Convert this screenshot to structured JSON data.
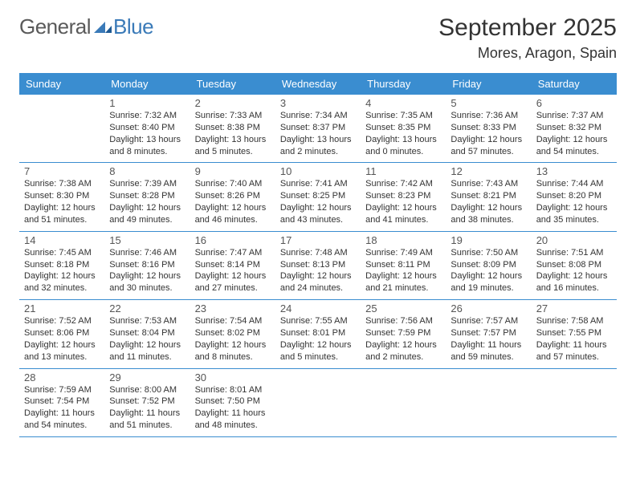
{
  "logo": {
    "general": "General",
    "blue": "Blue"
  },
  "title": "September 2025",
  "location": "Mores, Aragon, Spain",
  "colors": {
    "headerBar": "#3a8dd0",
    "rule": "#3a8dd0",
    "logoBlue": "#3a7ab8",
    "text": "#333333",
    "logoGray": "#5a5a5a"
  },
  "weekdays": [
    "Sunday",
    "Monday",
    "Tuesday",
    "Wednesday",
    "Thursday",
    "Friday",
    "Saturday"
  ],
  "weeks": [
    [
      null,
      {
        "n": "1",
        "sr": "Sunrise: 7:32 AM",
        "ss": "Sunset: 8:40 PM",
        "dl": "Daylight: 13 hours and 8 minutes."
      },
      {
        "n": "2",
        "sr": "Sunrise: 7:33 AM",
        "ss": "Sunset: 8:38 PM",
        "dl": "Daylight: 13 hours and 5 minutes."
      },
      {
        "n": "3",
        "sr": "Sunrise: 7:34 AM",
        "ss": "Sunset: 8:37 PM",
        "dl": "Daylight: 13 hours and 2 minutes."
      },
      {
        "n": "4",
        "sr": "Sunrise: 7:35 AM",
        "ss": "Sunset: 8:35 PM",
        "dl": "Daylight: 13 hours and 0 minutes."
      },
      {
        "n": "5",
        "sr": "Sunrise: 7:36 AM",
        "ss": "Sunset: 8:33 PM",
        "dl": "Daylight: 12 hours and 57 minutes."
      },
      {
        "n": "6",
        "sr": "Sunrise: 7:37 AM",
        "ss": "Sunset: 8:32 PM",
        "dl": "Daylight: 12 hours and 54 minutes."
      }
    ],
    [
      {
        "n": "7",
        "sr": "Sunrise: 7:38 AM",
        "ss": "Sunset: 8:30 PM",
        "dl": "Daylight: 12 hours and 51 minutes."
      },
      {
        "n": "8",
        "sr": "Sunrise: 7:39 AM",
        "ss": "Sunset: 8:28 PM",
        "dl": "Daylight: 12 hours and 49 minutes."
      },
      {
        "n": "9",
        "sr": "Sunrise: 7:40 AM",
        "ss": "Sunset: 8:26 PM",
        "dl": "Daylight: 12 hours and 46 minutes."
      },
      {
        "n": "10",
        "sr": "Sunrise: 7:41 AM",
        "ss": "Sunset: 8:25 PM",
        "dl": "Daylight: 12 hours and 43 minutes."
      },
      {
        "n": "11",
        "sr": "Sunrise: 7:42 AM",
        "ss": "Sunset: 8:23 PM",
        "dl": "Daylight: 12 hours and 41 minutes."
      },
      {
        "n": "12",
        "sr": "Sunrise: 7:43 AM",
        "ss": "Sunset: 8:21 PM",
        "dl": "Daylight: 12 hours and 38 minutes."
      },
      {
        "n": "13",
        "sr": "Sunrise: 7:44 AM",
        "ss": "Sunset: 8:20 PM",
        "dl": "Daylight: 12 hours and 35 minutes."
      }
    ],
    [
      {
        "n": "14",
        "sr": "Sunrise: 7:45 AM",
        "ss": "Sunset: 8:18 PM",
        "dl": "Daylight: 12 hours and 32 minutes."
      },
      {
        "n": "15",
        "sr": "Sunrise: 7:46 AM",
        "ss": "Sunset: 8:16 PM",
        "dl": "Daylight: 12 hours and 30 minutes."
      },
      {
        "n": "16",
        "sr": "Sunrise: 7:47 AM",
        "ss": "Sunset: 8:14 PM",
        "dl": "Daylight: 12 hours and 27 minutes."
      },
      {
        "n": "17",
        "sr": "Sunrise: 7:48 AM",
        "ss": "Sunset: 8:13 PM",
        "dl": "Daylight: 12 hours and 24 minutes."
      },
      {
        "n": "18",
        "sr": "Sunrise: 7:49 AM",
        "ss": "Sunset: 8:11 PM",
        "dl": "Daylight: 12 hours and 21 minutes."
      },
      {
        "n": "19",
        "sr": "Sunrise: 7:50 AM",
        "ss": "Sunset: 8:09 PM",
        "dl": "Daylight: 12 hours and 19 minutes."
      },
      {
        "n": "20",
        "sr": "Sunrise: 7:51 AM",
        "ss": "Sunset: 8:08 PM",
        "dl": "Daylight: 12 hours and 16 minutes."
      }
    ],
    [
      {
        "n": "21",
        "sr": "Sunrise: 7:52 AM",
        "ss": "Sunset: 8:06 PM",
        "dl": "Daylight: 12 hours and 13 minutes."
      },
      {
        "n": "22",
        "sr": "Sunrise: 7:53 AM",
        "ss": "Sunset: 8:04 PM",
        "dl": "Daylight: 12 hours and 11 minutes."
      },
      {
        "n": "23",
        "sr": "Sunrise: 7:54 AM",
        "ss": "Sunset: 8:02 PM",
        "dl": "Daylight: 12 hours and 8 minutes."
      },
      {
        "n": "24",
        "sr": "Sunrise: 7:55 AM",
        "ss": "Sunset: 8:01 PM",
        "dl": "Daylight: 12 hours and 5 minutes."
      },
      {
        "n": "25",
        "sr": "Sunrise: 7:56 AM",
        "ss": "Sunset: 7:59 PM",
        "dl": "Daylight: 12 hours and 2 minutes."
      },
      {
        "n": "26",
        "sr": "Sunrise: 7:57 AM",
        "ss": "Sunset: 7:57 PM",
        "dl": "Daylight: 11 hours and 59 minutes."
      },
      {
        "n": "27",
        "sr": "Sunrise: 7:58 AM",
        "ss": "Sunset: 7:55 PM",
        "dl": "Daylight: 11 hours and 57 minutes."
      }
    ],
    [
      {
        "n": "28",
        "sr": "Sunrise: 7:59 AM",
        "ss": "Sunset: 7:54 PM",
        "dl": "Daylight: 11 hours and 54 minutes."
      },
      {
        "n": "29",
        "sr": "Sunrise: 8:00 AM",
        "ss": "Sunset: 7:52 PM",
        "dl": "Daylight: 11 hours and 51 minutes."
      },
      {
        "n": "30",
        "sr": "Sunrise: 8:01 AM",
        "ss": "Sunset: 7:50 PM",
        "dl": "Daylight: 11 hours and 48 minutes."
      },
      null,
      null,
      null,
      null
    ]
  ]
}
